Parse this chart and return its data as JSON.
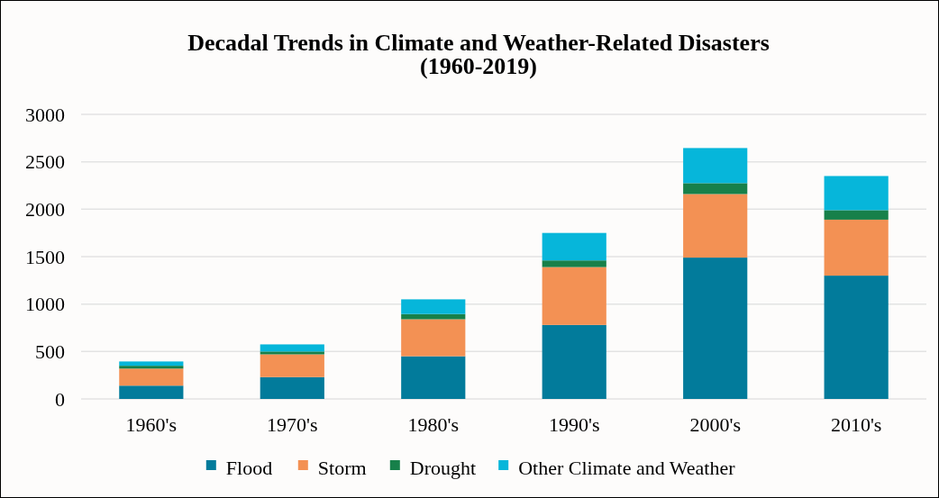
{
  "chart_data": {
    "type": "bar",
    "title": "Decadal Trends in Climate and Weather-Related Disasters\n(1960-2019)",
    "categories": [
      "1960's",
      "1970's",
      "1980's",
      "1990's",
      "2000's",
      "2010's"
    ],
    "stacked": true,
    "series": [
      {
        "name": "Flood",
        "color": "#027b9b",
        "values": [
          140,
          230,
          450,
          780,
          1490,
          1300
        ]
      },
      {
        "name": "Storm",
        "color": "#f39154",
        "values": [
          180,
          240,
          390,
          610,
          670,
          590
        ]
      },
      {
        "name": "Drought",
        "color": "#17804a",
        "values": [
          30,
          30,
          55,
          70,
          115,
          100
        ]
      },
      {
        "name": "Other Climate and Weather",
        "color": "#06b6da",
        "values": [
          45,
          75,
          155,
          290,
          370,
          360
        ]
      }
    ],
    "ylim": [
      0,
      3000
    ],
    "yticks": [
      0,
      500,
      1000,
      1500,
      2000,
      2500,
      3000
    ],
    "grid": "y",
    "legend": "bottom"
  }
}
